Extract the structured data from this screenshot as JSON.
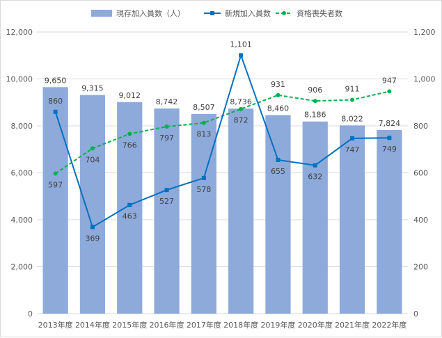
{
  "chart_data": {
    "type": "bar",
    "categories": [
      "2013年度",
      "2014年度",
      "2015年度",
      "2016年度",
      "2017年度",
      "2018年度",
      "2019年度",
      "2020年度",
      "2021年度",
      "2022年度"
    ],
    "series": [
      {
        "name": "現存加入員数（人）",
        "kind": "bar",
        "axis": "left",
        "color": "#8eaadb",
        "values": [
          9650,
          9315,
          9012,
          8742,
          8507,
          8736,
          8460,
          8186,
          8022,
          7824
        ],
        "labels": [
          "9,650",
          "9,315",
          "9,012",
          "8,742",
          "8,507",
          "8,736",
          "8,460",
          "8,186",
          "8,022",
          "7,824"
        ]
      },
      {
        "name": "新規加入員数",
        "kind": "line",
        "axis": "right",
        "color": "#0070c0",
        "values": [
          860,
          369,
          463,
          527,
          578,
          1101,
          655,
          632,
          747,
          749
        ],
        "labels": [
          "860",
          "369",
          "463",
          "527",
          "578",
          "1,101",
          "655",
          "632",
          "747",
          "749"
        ]
      },
      {
        "name": "資格喪失者数",
        "kind": "dashed-line",
        "axis": "right",
        "color": "#00b050",
        "values": [
          597,
          704,
          766,
          797,
          813,
          872,
          931,
          906,
          911,
          947
        ],
        "labels": [
          "597",
          "704",
          "766",
          "797",
          "813",
          "872",
          "931",
          "906",
          "911",
          "947"
        ]
      }
    ],
    "y_left": {
      "min": 0,
      "max": 12000,
      "ticks": [
        "0",
        "2,000",
        "4,000",
        "6,000",
        "8,000",
        "10,000",
        "12,000"
      ]
    },
    "y_right": {
      "min": 0,
      "max": 1200,
      "ticks": [
        "0",
        "200",
        "400",
        "600",
        "800",
        "1,000",
        "1,200"
      ]
    },
    "grid": true,
    "legend": "top-center"
  }
}
